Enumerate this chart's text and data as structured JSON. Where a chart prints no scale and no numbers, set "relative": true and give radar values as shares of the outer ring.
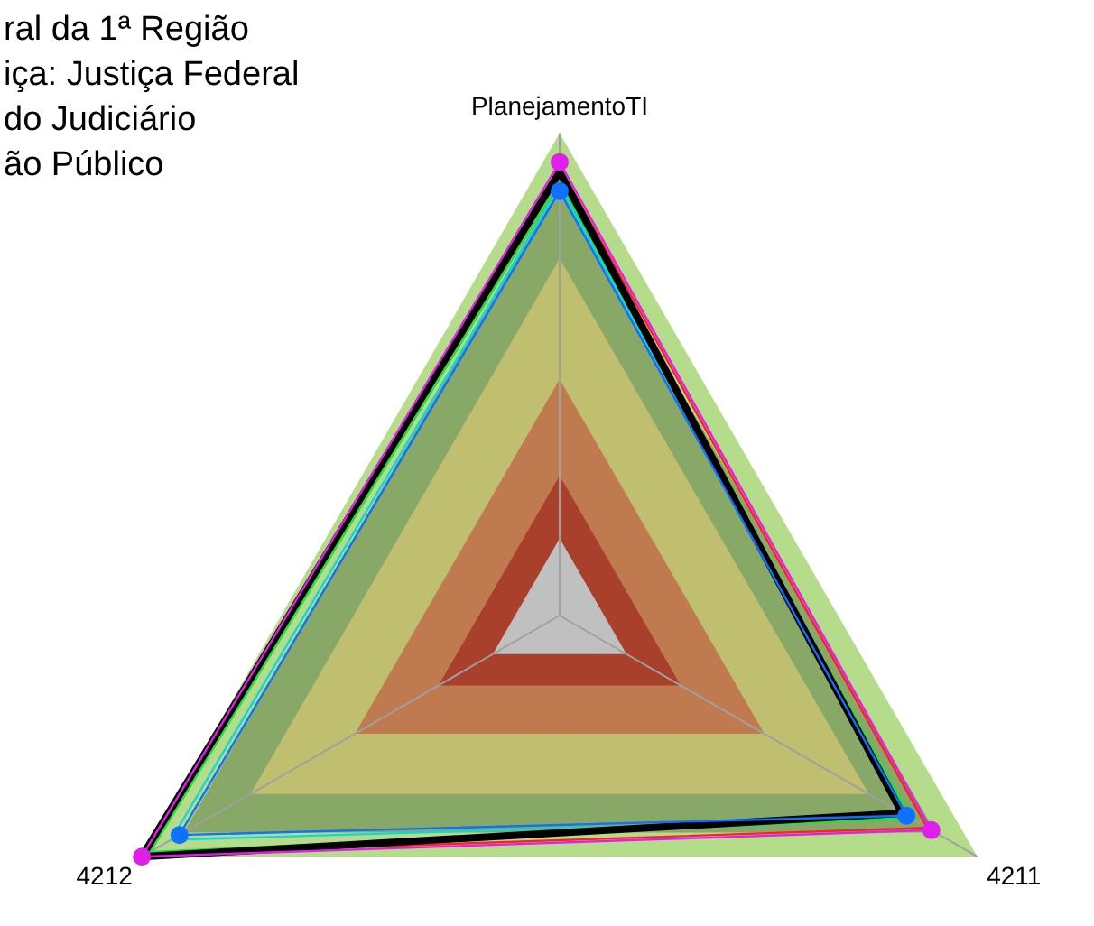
{
  "chart_data": {
    "type": "radar",
    "relative": true,
    "categories": [
      "PlanejamentoTI",
      "4211",
      "4212"
    ],
    "annotations": [
      "ral da 1ª Região",
      "iça: Justiça Federal",
      "do Judiciário",
      "ão Público"
    ],
    "series": [
      {
        "color": "#000000",
        "values": [
          0.92,
          0.82,
          1.0
        ],
        "marker": "none"
      },
      {
        "color": "#ff2020",
        "values": [
          0.93,
          0.88,
          0.99
        ],
        "marker": "none"
      },
      {
        "color": "#20e040",
        "values": [
          0.9,
          0.84,
          0.98
        ],
        "marker": "none"
      },
      {
        "color": "#10d8d8",
        "values": [
          0.89,
          0.84,
          0.93
        ],
        "marker": "none"
      },
      {
        "color": "#1070ff",
        "values": [
          0.88,
          0.83,
          0.91
        ],
        "marker": "circle"
      },
      {
        "color": "#e020e8",
        "values": [
          0.94,
          0.89,
          1.0
        ],
        "marker": "circle"
      }
    ],
    "grid": false,
    "legend": false
  }
}
